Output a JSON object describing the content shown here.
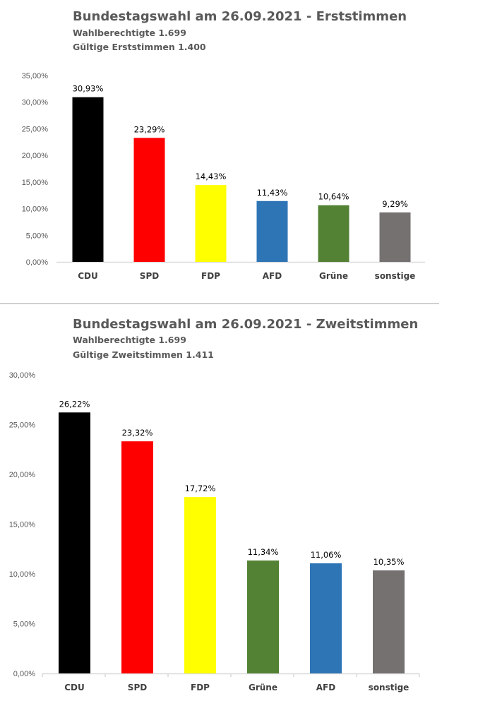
{
  "chart_data": [
    {
      "type": "bar",
      "title": "Bundestagswahl am 26.09.2021 - Erststimmen",
      "subtitle_lines": [
        "Wahlberechtigte 1.699",
        "Gültige Erststimmen 1.400"
      ],
      "categories": [
        "CDU",
        "SPD",
        "FDP",
        "AFD",
        "Grüne",
        "sonstige"
      ],
      "values": [
        30.93,
        23.29,
        14.43,
        11.43,
        10.64,
        9.29
      ],
      "data_labels": [
        "30,93%",
        "23,29%",
        "14,43%",
        "11,43%",
        "10,64%",
        "9,29%"
      ],
      "colors": [
        "#000000",
        "#ff0000",
        "#ffff00",
        "#2e75b6",
        "#548235",
        "#767171"
      ],
      "yticks": [
        "0,00%",
        "5,00%",
        "10,00%",
        "15,00%",
        "20,00%",
        "25,00%",
        "30,00%",
        "35,00%"
      ],
      "ylim": [
        0,
        35
      ],
      "xlabel": "",
      "ylabel": "",
      "grid": false,
      "legend": "none"
    },
    {
      "type": "bar",
      "title": "Bundestagswahl am 26.09.2021 - Zweitstimmen",
      "subtitle_lines": [
        "Wahlberechtigte 1.699",
        "Gültige Zweitstimmen 1.411"
      ],
      "categories": [
        "CDU",
        "SPD",
        "FDP",
        "Grüne",
        "AFD",
        "sonstige"
      ],
      "values": [
        26.22,
        23.32,
        17.72,
        11.34,
        11.06,
        10.35
      ],
      "data_labels": [
        "26,22%",
        "23,32%",
        "17,72%",
        "11,34%",
        "11,06%",
        "10,35%"
      ],
      "colors": [
        "#000000",
        "#ff0000",
        "#ffff00",
        "#548235",
        "#2e75b6",
        "#767171"
      ],
      "yticks": [
        "0,00%",
        "5,00%",
        "10,00%",
        "15,00%",
        "20,00%",
        "25,00%",
        "30,00%"
      ],
      "ylim": [
        0,
        30
      ],
      "xlabel": "",
      "ylabel": "",
      "grid": false,
      "legend": "none"
    }
  ]
}
